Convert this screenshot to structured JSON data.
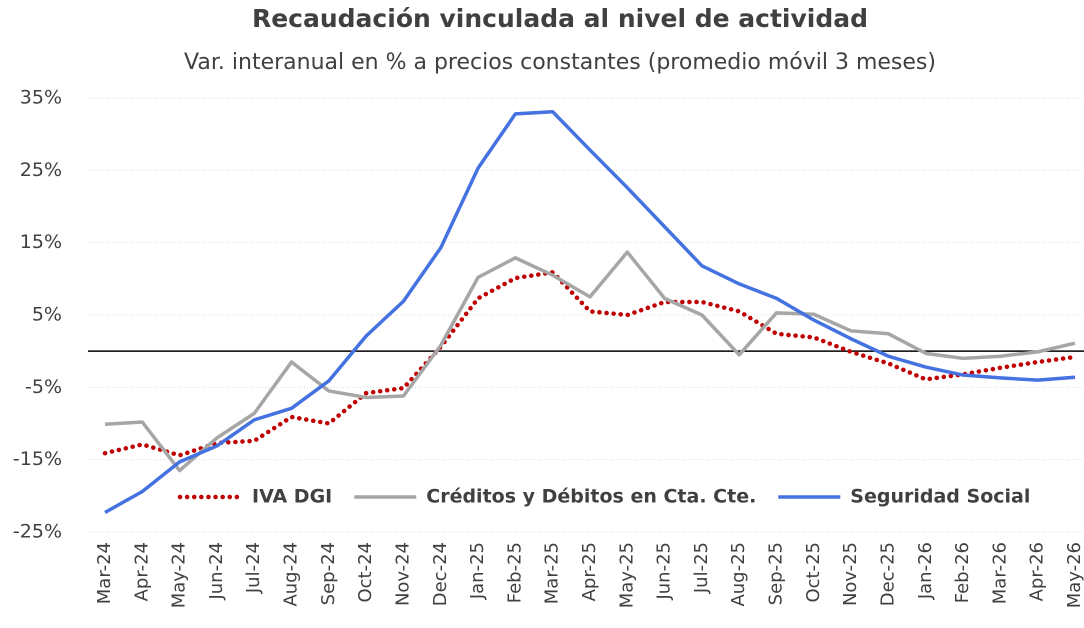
{
  "chart_data": {
    "type": "line",
    "title": "Recaudación vinculada al nivel de actividad",
    "subtitle": "Var. interanual en % a precios constantes (promedio móvil 3 meses)",
    "categories": [
      "Mar-24",
      "Apr-24",
      "May-24",
      "Jun-24",
      "Jul-24",
      "Aug-24",
      "Sep-24",
      "Oct-24",
      "Nov-24",
      "Dec-24",
      "Jan-25",
      "Feb-25",
      "Mar-25",
      "Apr-25",
      "May-25",
      "Jun-25",
      "Jul-25",
      "Aug-25",
      "Sep-25",
      "Oct-25",
      "Nov-25",
      "Dec-25",
      "Jan-26",
      "Feb-26",
      "Mar-26",
      "Apr-26",
      "May-26"
    ],
    "series": [
      {
        "name": "IVA DGI",
        "color": "#c00000",
        "dash": "dotted",
        "values": [
          -14.1,
          -12.9,
          -14.4,
          -12.7,
          -12.4,
          -9.1,
          -10.0,
          -5.8,
          -5.1,
          0.6,
          7.3,
          10.1,
          10.9,
          5.5,
          5.0,
          6.8,
          6.8,
          5.5,
          2.4,
          1.9,
          -0.1,
          -1.7,
          -3.9,
          -3.2,
          -2.3,
          -1.5,
          -0.8
        ]
      },
      {
        "name": "Créditos y Débitos en Cta. Cte.",
        "color": "#a6a6a6",
        "dash": "solid",
        "values": [
          -10.1,
          -9.8,
          -16.5,
          -12.0,
          -8.6,
          -1.5,
          -5.5,
          -6.4,
          -6.2,
          0.8,
          10.2,
          12.9,
          10.5,
          7.5,
          13.7,
          7.3,
          5.0,
          -0.5,
          5.3,
          5.1,
          2.8,
          2.4,
          -0.3,
          -1.0,
          -0.7,
          -0.1,
          1.1
        ]
      },
      {
        "name": "Seguridad Social",
        "color": "#4472e0",
        "dash": "solid",
        "values": [
          -22.3,
          -19.4,
          -15.3,
          -13.1,
          -9.5,
          -7.9,
          -4.1,
          2.1,
          6.9,
          14.3,
          25.3,
          32.8,
          33.1,
          27.8,
          22.6,
          17.2,
          11.8,
          9.3,
          7.3,
          4.3,
          1.7,
          -0.7,
          -2.2,
          -3.3,
          -3.7,
          -4.0,
          -3.6
        ]
      }
    ],
    "ylim": [
      -25,
      35
    ],
    "yticks": [
      {
        "value": -25,
        "label": "-25%"
      },
      {
        "value": -15,
        "label": "-15%"
      },
      {
        "value": -5,
        "label": "-5%"
      },
      {
        "value": 5,
        "label": "5%"
      },
      {
        "value": 15,
        "label": "15%"
      },
      {
        "value": 25,
        "label": "25%"
      },
      {
        "value": 35,
        "label": "35%"
      }
    ],
    "grid": true,
    "legend": "bottom"
  }
}
